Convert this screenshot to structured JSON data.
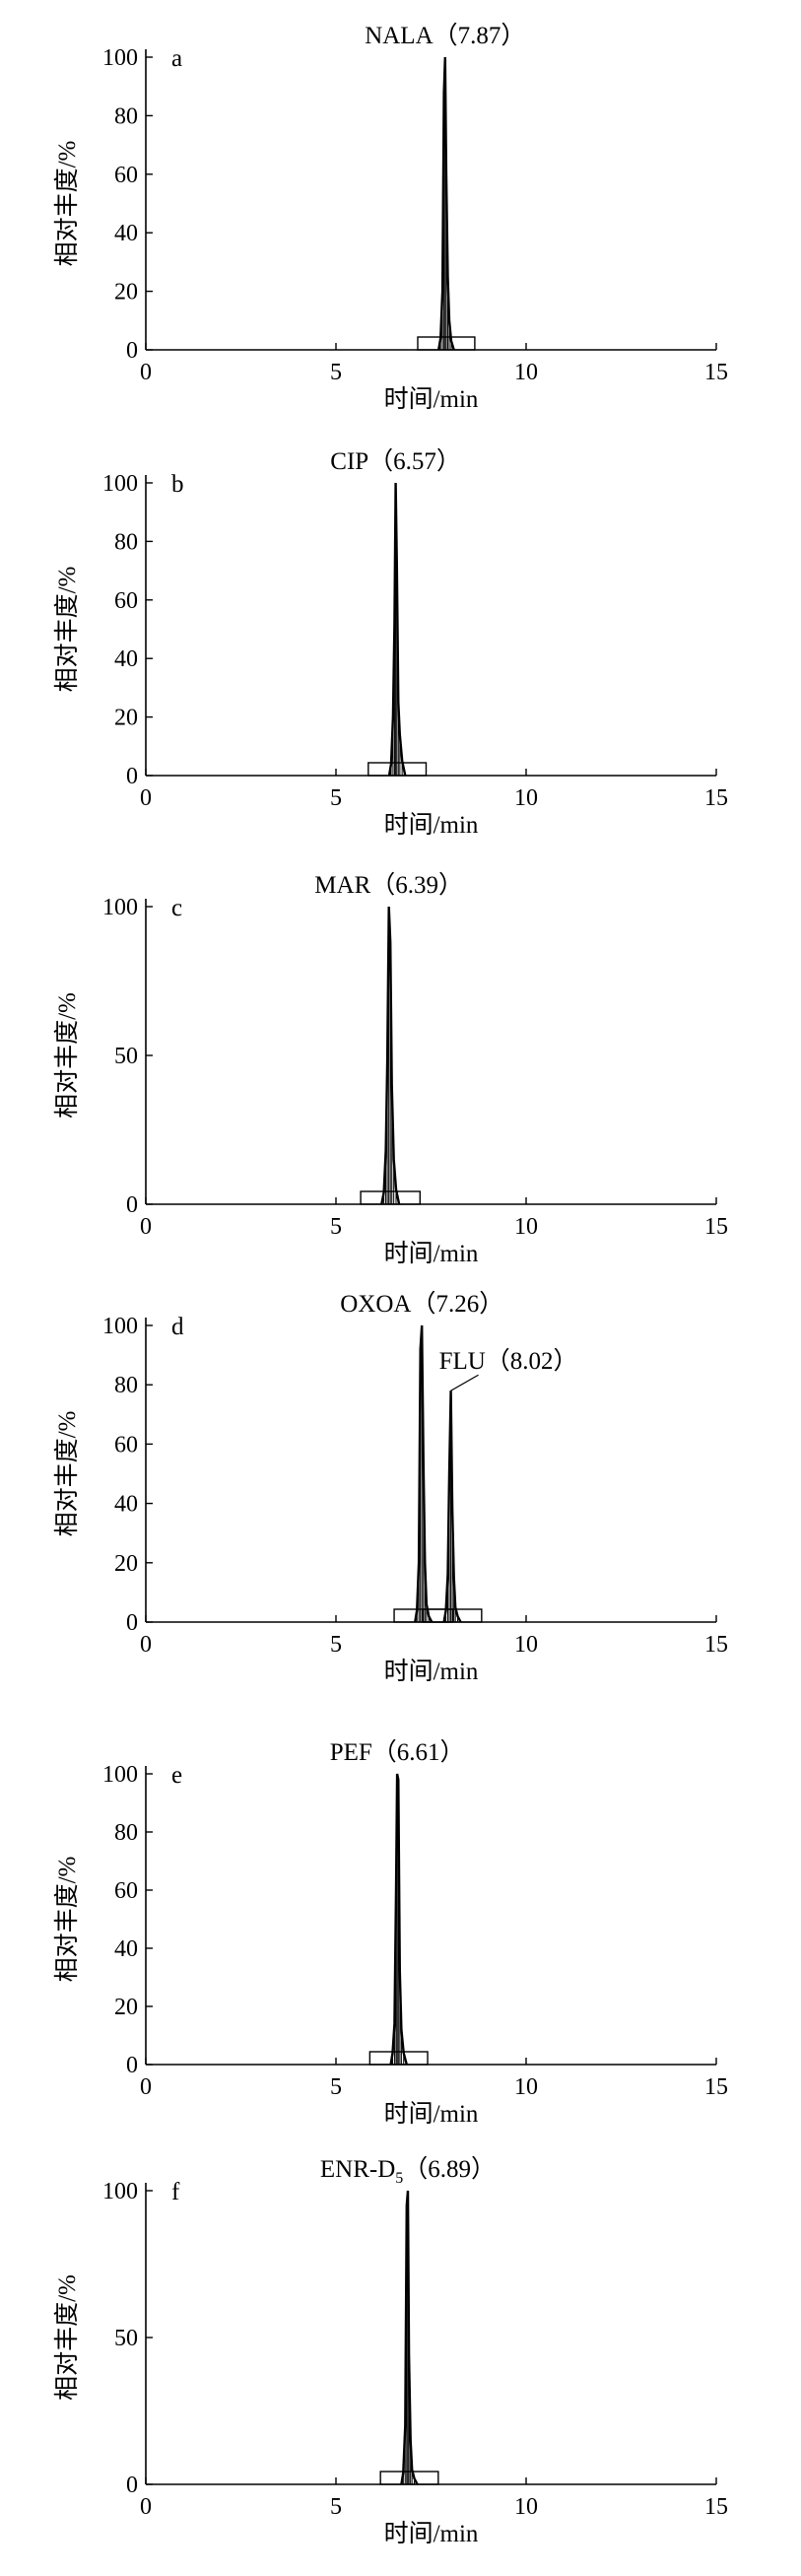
{
  "chart_data": [
    {
      "type": "line",
      "panel_label": "a",
      "title": "NALA（7.87）",
      "xlabel": "时间/min",
      "ylabel": "相对丰度/%",
      "xlim": [
        0,
        15
      ],
      "ylim": [
        0,
        100
      ],
      "xticks": [
        "0",
        "5",
        "10",
        "15"
      ],
      "yticks": [
        "0",
        "20",
        "40",
        "60",
        "80",
        "100"
      ],
      "series": [
        {
          "x": [
            7.7,
            7.75,
            7.8,
            7.84,
            7.87,
            7.9,
            7.94,
            7.98,
            8.03,
            8.1
          ],
          "y": [
            0,
            4,
            20,
            88,
            100,
            61,
            25,
            10,
            3,
            0
          ]
        }
      ]
    },
    {
      "type": "line",
      "panel_label": "b",
      "title": "CIP（6.57）",
      "xlabel": "时间/min",
      "ylabel": "相对丰度/%",
      "xlim": [
        0,
        15
      ],
      "ylim": [
        0,
        100
      ],
      "xticks": [
        "0",
        "5",
        "10",
        "15"
      ],
      "yticks": [
        "0",
        "20",
        "40",
        "60",
        "80",
        "100"
      ],
      "series": [
        {
          "x": [
            6.4,
            6.45,
            6.5,
            6.54,
            6.57,
            6.6,
            6.64,
            6.68,
            6.74,
            6.82
          ],
          "y": [
            0,
            4,
            20,
            52,
            100,
            72,
            25,
            14,
            5,
            0
          ]
        }
      ]
    },
    {
      "type": "line",
      "panel_label": "c",
      "title": "MAR（6.39）",
      "xlabel": "时间/min",
      "ylabel": "相对丰度/%",
      "xlim": [
        0,
        15
      ],
      "ylim": [
        0,
        100
      ],
      "xticks": [
        "0",
        "5",
        "10",
        "15"
      ],
      "yticks": [
        "0",
        "50",
        "100"
      ],
      "series": [
        {
          "x": [
            6.2,
            6.26,
            6.31,
            6.35,
            6.39,
            6.43,
            6.47,
            6.52,
            6.58,
            6.66
          ],
          "y": [
            0,
            4,
            18,
            48,
            100,
            88,
            40,
            15,
            5,
            0
          ]
        }
      ]
    },
    {
      "type": "line",
      "panel_label": "d",
      "title": "OXOA（7.26）",
      "xlabel": "时间/min",
      "ylabel": "相对丰度/%",
      "xlim": [
        0,
        15
      ],
      "ylim": [
        0,
        100
      ],
      "xticks": [
        "0",
        "5",
        "10",
        "15"
      ],
      "yticks": [
        "0",
        "20",
        "40",
        "60",
        "80",
        "100"
      ],
      "annotations": [
        {
          "text": "FLU（8.02）",
          "x": 8.02,
          "y": 78
        }
      ],
      "series": [
        {
          "x": [
            7.08,
            7.13,
            7.18,
            7.22,
            7.26,
            7.3,
            7.34,
            7.38,
            7.44,
            7.52
          ],
          "y": [
            0,
            4,
            20,
            92,
            100,
            53,
            20,
            6,
            2,
            0
          ]
        },
        {
          "x": [
            7.84,
            7.89,
            7.94,
            7.98,
            8.02,
            8.06,
            8.1,
            8.14,
            8.2,
            8.28
          ],
          "y": [
            0,
            4,
            16,
            50,
            78,
            38,
            15,
            5,
            2,
            0
          ]
        }
      ]
    },
    {
      "type": "line",
      "panel_label": "e",
      "title": "PEF（6.61）",
      "xlabel": "时间/min",
      "ylabel": "相对丰度/%",
      "xlim": [
        0,
        15
      ],
      "ylim": [
        0,
        100
      ],
      "xticks": [
        "0",
        "5",
        "10",
        "15"
      ],
      "yticks": [
        "0",
        "20",
        "40",
        "60",
        "80",
        "100"
      ],
      "series": [
        {
          "x": [
            6.44,
            6.49,
            6.54,
            6.58,
            6.61,
            6.64,
            6.68,
            6.72,
            6.78,
            6.86
          ],
          "y": [
            0,
            4,
            14,
            60,
            100,
            98,
            32,
            12,
            4,
            0
          ]
        }
      ]
    },
    {
      "type": "line",
      "panel_label": "f",
      "title": "ENR-D",
      "title_subscript": "5",
      "title_tail": "（6.89）",
      "xlabel": "时间/min",
      "ylabel": "相对丰度/%",
      "xlim": [
        0,
        15
      ],
      "ylim": [
        0,
        100
      ],
      "xticks": [
        "0",
        "5",
        "10",
        "15"
      ],
      "yticks": [
        "0",
        "50",
        "100"
      ],
      "series": [
        {
          "x": [
            6.72,
            6.77,
            6.82,
            6.86,
            6.89,
            6.92,
            6.96,
            7.0,
            7.06,
            7.14
          ],
          "y": [
            0,
            4,
            20,
            95,
            100,
            44,
            15,
            5,
            2,
            0
          ]
        }
      ]
    }
  ]
}
